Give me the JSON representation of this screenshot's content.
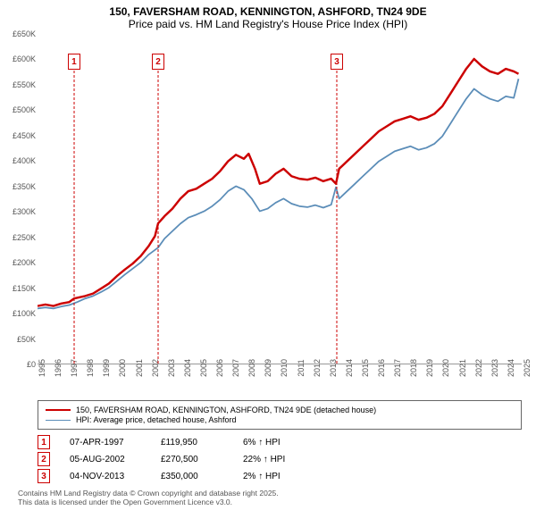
{
  "title": {
    "line1": "150, FAVERSHAM ROAD, KENNINGTON, ASHFORD, TN24 9DE",
    "line2": "Price paid vs. HM Land Registry's House Price Index (HPI)",
    "fontSize": 12
  },
  "chart": {
    "type": "line",
    "background": "#ffffff",
    "yAxis": {
      "min": 0,
      "max": 650000,
      "step": 50000,
      "labels": [
        "£0",
        "£50K",
        "£100K",
        "£150K",
        "£200K",
        "£250K",
        "£300K",
        "£350K",
        "£400K",
        "£450K",
        "£500K",
        "£550K",
        "£600K",
        "£650K"
      ],
      "fontSize": 9,
      "color": "#555555"
    },
    "xAxis": {
      "min": 1995,
      "max": 2025.5,
      "ticks": [
        1995,
        1996,
        1997,
        1998,
        1999,
        2000,
        2001,
        2002,
        2003,
        2004,
        2005,
        2006,
        2007,
        2008,
        2009,
        2010,
        2011,
        2012,
        2013,
        2014,
        2015,
        2016,
        2017,
        2018,
        2019,
        2020,
        2021,
        2022,
        2023,
        2024,
        2025
      ],
      "fontSize": 9,
      "color": "#555555"
    },
    "series": [
      {
        "name": "price-paid",
        "label": "150, FAVERSHAM ROAD, KENNINGTON, ASHFORD, TN24 9DE (detached house)",
        "color": "#cc0000",
        "lineWidth": 2.5,
        "points": [
          [
            1995,
            105000
          ],
          [
            1995.5,
            108000
          ],
          [
            1996,
            105000
          ],
          [
            1996.5,
            110000
          ],
          [
            1997,
            113000
          ],
          [
            1997.3,
            119950
          ],
          [
            1998,
            125000
          ],
          [
            1998.5,
            130000
          ],
          [
            1999,
            140000
          ],
          [
            1999.5,
            150000
          ],
          [
            2000,
            165000
          ],
          [
            2000.5,
            178000
          ],
          [
            2001,
            190000
          ],
          [
            2001.5,
            205000
          ],
          [
            2002,
            225000
          ],
          [
            2002.4,
            245000
          ],
          [
            2002.6,
            270500
          ],
          [
            2003,
            285000
          ],
          [
            2003.5,
            300000
          ],
          [
            2004,
            320000
          ],
          [
            2004.5,
            335000
          ],
          [
            2005,
            340000
          ],
          [
            2005.5,
            350000
          ],
          [
            2006,
            360000
          ],
          [
            2006.5,
            375000
          ],
          [
            2007,
            395000
          ],
          [
            2007.5,
            408000
          ],
          [
            2008,
            400000
          ],
          [
            2008.3,
            410000
          ],
          [
            2008.7,
            380000
          ],
          [
            2009,
            350000
          ],
          [
            2009.5,
            355000
          ],
          [
            2010,
            370000
          ],
          [
            2010.5,
            380000
          ],
          [
            2011,
            365000
          ],
          [
            2011.5,
            360000
          ],
          [
            2012,
            358000
          ],
          [
            2012.5,
            362000
          ],
          [
            2013,
            355000
          ],
          [
            2013.5,
            360000
          ],
          [
            2013.8,
            350000
          ],
          [
            2014,
            380000
          ],
          [
            2014.5,
            395000
          ],
          [
            2015,
            410000
          ],
          [
            2015.5,
            425000
          ],
          [
            2016,
            440000
          ],
          [
            2016.5,
            455000
          ],
          [
            2017,
            465000
          ],
          [
            2017.5,
            475000
          ],
          [
            2018,
            480000
          ],
          [
            2018.5,
            485000
          ],
          [
            2019,
            478000
          ],
          [
            2019.5,
            482000
          ],
          [
            2020,
            490000
          ],
          [
            2020.5,
            505000
          ],
          [
            2021,
            530000
          ],
          [
            2021.5,
            555000
          ],
          [
            2022,
            580000
          ],
          [
            2022.5,
            600000
          ],
          [
            2023,
            585000
          ],
          [
            2023.5,
            575000
          ],
          [
            2024,
            570000
          ],
          [
            2024.5,
            580000
          ],
          [
            2025,
            575000
          ],
          [
            2025.3,
            570000
          ]
        ]
      },
      {
        "name": "hpi",
        "label": "HPI: Average price, detached house, Ashford",
        "color": "#5b8db8",
        "lineWidth": 1.8,
        "points": [
          [
            1995,
            100000
          ],
          [
            1995.5,
            102000
          ],
          [
            1996,
            100000
          ],
          [
            1996.5,
            104000
          ],
          [
            1997,
            107000
          ],
          [
            1997.5,
            113000
          ],
          [
            1998,
            120000
          ],
          [
            1998.5,
            125000
          ],
          [
            1999,
            133000
          ],
          [
            1999.5,
            142000
          ],
          [
            2000,
            155000
          ],
          [
            2000.5,
            168000
          ],
          [
            2001,
            180000
          ],
          [
            2001.5,
            192000
          ],
          [
            2002,
            208000
          ],
          [
            2002.6,
            222000
          ],
          [
            2003,
            240000
          ],
          [
            2003.5,
            255000
          ],
          [
            2004,
            270000
          ],
          [
            2004.5,
            282000
          ],
          [
            2005,
            288000
          ],
          [
            2005.5,
            295000
          ],
          [
            2006,
            305000
          ],
          [
            2006.5,
            318000
          ],
          [
            2007,
            335000
          ],
          [
            2007.5,
            345000
          ],
          [
            2008,
            338000
          ],
          [
            2008.5,
            320000
          ],
          [
            2009,
            295000
          ],
          [
            2009.5,
            300000
          ],
          [
            2010,
            312000
          ],
          [
            2010.5,
            320000
          ],
          [
            2011,
            310000
          ],
          [
            2011.5,
            305000
          ],
          [
            2012,
            303000
          ],
          [
            2012.5,
            307000
          ],
          [
            2013,
            302000
          ],
          [
            2013.5,
            308000
          ],
          [
            2013.8,
            343000
          ],
          [
            2014,
            320000
          ],
          [
            2014.5,
            335000
          ],
          [
            2015,
            350000
          ],
          [
            2015.5,
            365000
          ],
          [
            2016,
            380000
          ],
          [
            2016.5,
            395000
          ],
          [
            2017,
            405000
          ],
          [
            2017.5,
            415000
          ],
          [
            2018,
            420000
          ],
          [
            2018.5,
            425000
          ],
          [
            2019,
            418000
          ],
          [
            2019.5,
            422000
          ],
          [
            2020,
            430000
          ],
          [
            2020.5,
            445000
          ],
          [
            2021,
            470000
          ],
          [
            2021.5,
            495000
          ],
          [
            2022,
            520000
          ],
          [
            2022.5,
            540000
          ],
          [
            2023,
            528000
          ],
          [
            2023.5,
            520000
          ],
          [
            2024,
            515000
          ],
          [
            2024.5,
            525000
          ],
          [
            2025,
            522000
          ],
          [
            2025.3,
            560000
          ]
        ]
      }
    ],
    "saleMarkers": [
      {
        "n": "1",
        "year": 1997.3,
        "topFrac": 0.06
      },
      {
        "n": "2",
        "year": 2002.6,
        "topFrac": 0.06
      },
      {
        "n": "3",
        "year": 2013.85,
        "topFrac": 0.06
      }
    ]
  },
  "legend": {
    "borderColor": "#666666",
    "fontSize": 9
  },
  "salesTable": {
    "rows": [
      {
        "n": "1",
        "date": "07-APR-1997",
        "price": "£119,950",
        "pct": "6% ↑ HPI"
      },
      {
        "n": "2",
        "date": "05-AUG-2002",
        "price": "£270,500",
        "pct": "22% ↑ HPI"
      },
      {
        "n": "3",
        "date": "04-NOV-2013",
        "price": "£350,000",
        "pct": "2% ↑ HPI"
      }
    ]
  },
  "footer": {
    "line1": "Contains HM Land Registry data © Crown copyright and database right 2025.",
    "line2": "This data is licensed under the Open Government Licence v3.0."
  }
}
